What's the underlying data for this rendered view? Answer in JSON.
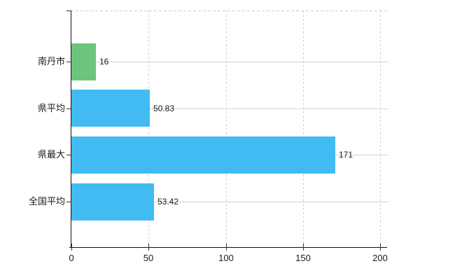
{
  "chart_data": {
    "type": "bar",
    "orientation": "horizontal",
    "title": "",
    "categories": [
      "南丹市",
      "県平均",
      "県最大",
      "全国平均"
    ],
    "values": [
      16,
      50.83,
      171,
      53.42
    ],
    "value_labels": [
      "16",
      "50.83",
      "171",
      "53.42"
    ],
    "bar_colors": [
      "#6dc57c",
      "#41bbf2",
      "#41bbf2",
      "#41bbf2"
    ],
    "xlim": [
      0,
      200
    ],
    "x_ticks": [
      0,
      50,
      100,
      150,
      200
    ],
    "x_tick_labels": [
      "0",
      "50",
      "100",
      "150",
      "200"
    ],
    "grid": true,
    "legend": false,
    "axis_color": "#111111",
    "grid_color": "#d3d3d3",
    "text_color": "#1a1a1a"
  }
}
